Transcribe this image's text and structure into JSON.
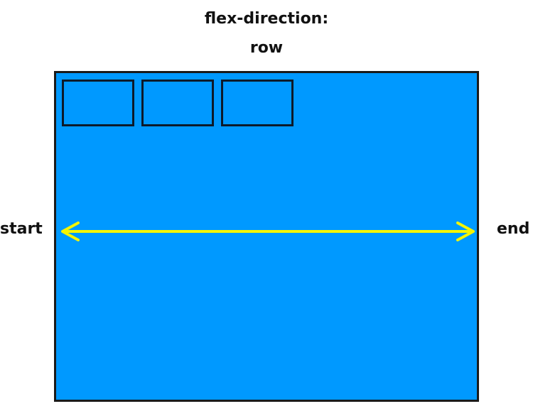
{
  "title": {
    "line1": "flex-direction:",
    "line2": "row"
  },
  "axis": {
    "start_label": "start",
    "end_label": "end"
  },
  "items": [
    {
      "name": "flex-item-1"
    },
    {
      "name": "flex-item-2"
    },
    {
      "name": "flex-item-3"
    }
  ],
  "colors": {
    "container_fill": "#0099ff",
    "arrow": "#f5f500",
    "item_border": "#0d1a2a",
    "text": "#111111"
  }
}
